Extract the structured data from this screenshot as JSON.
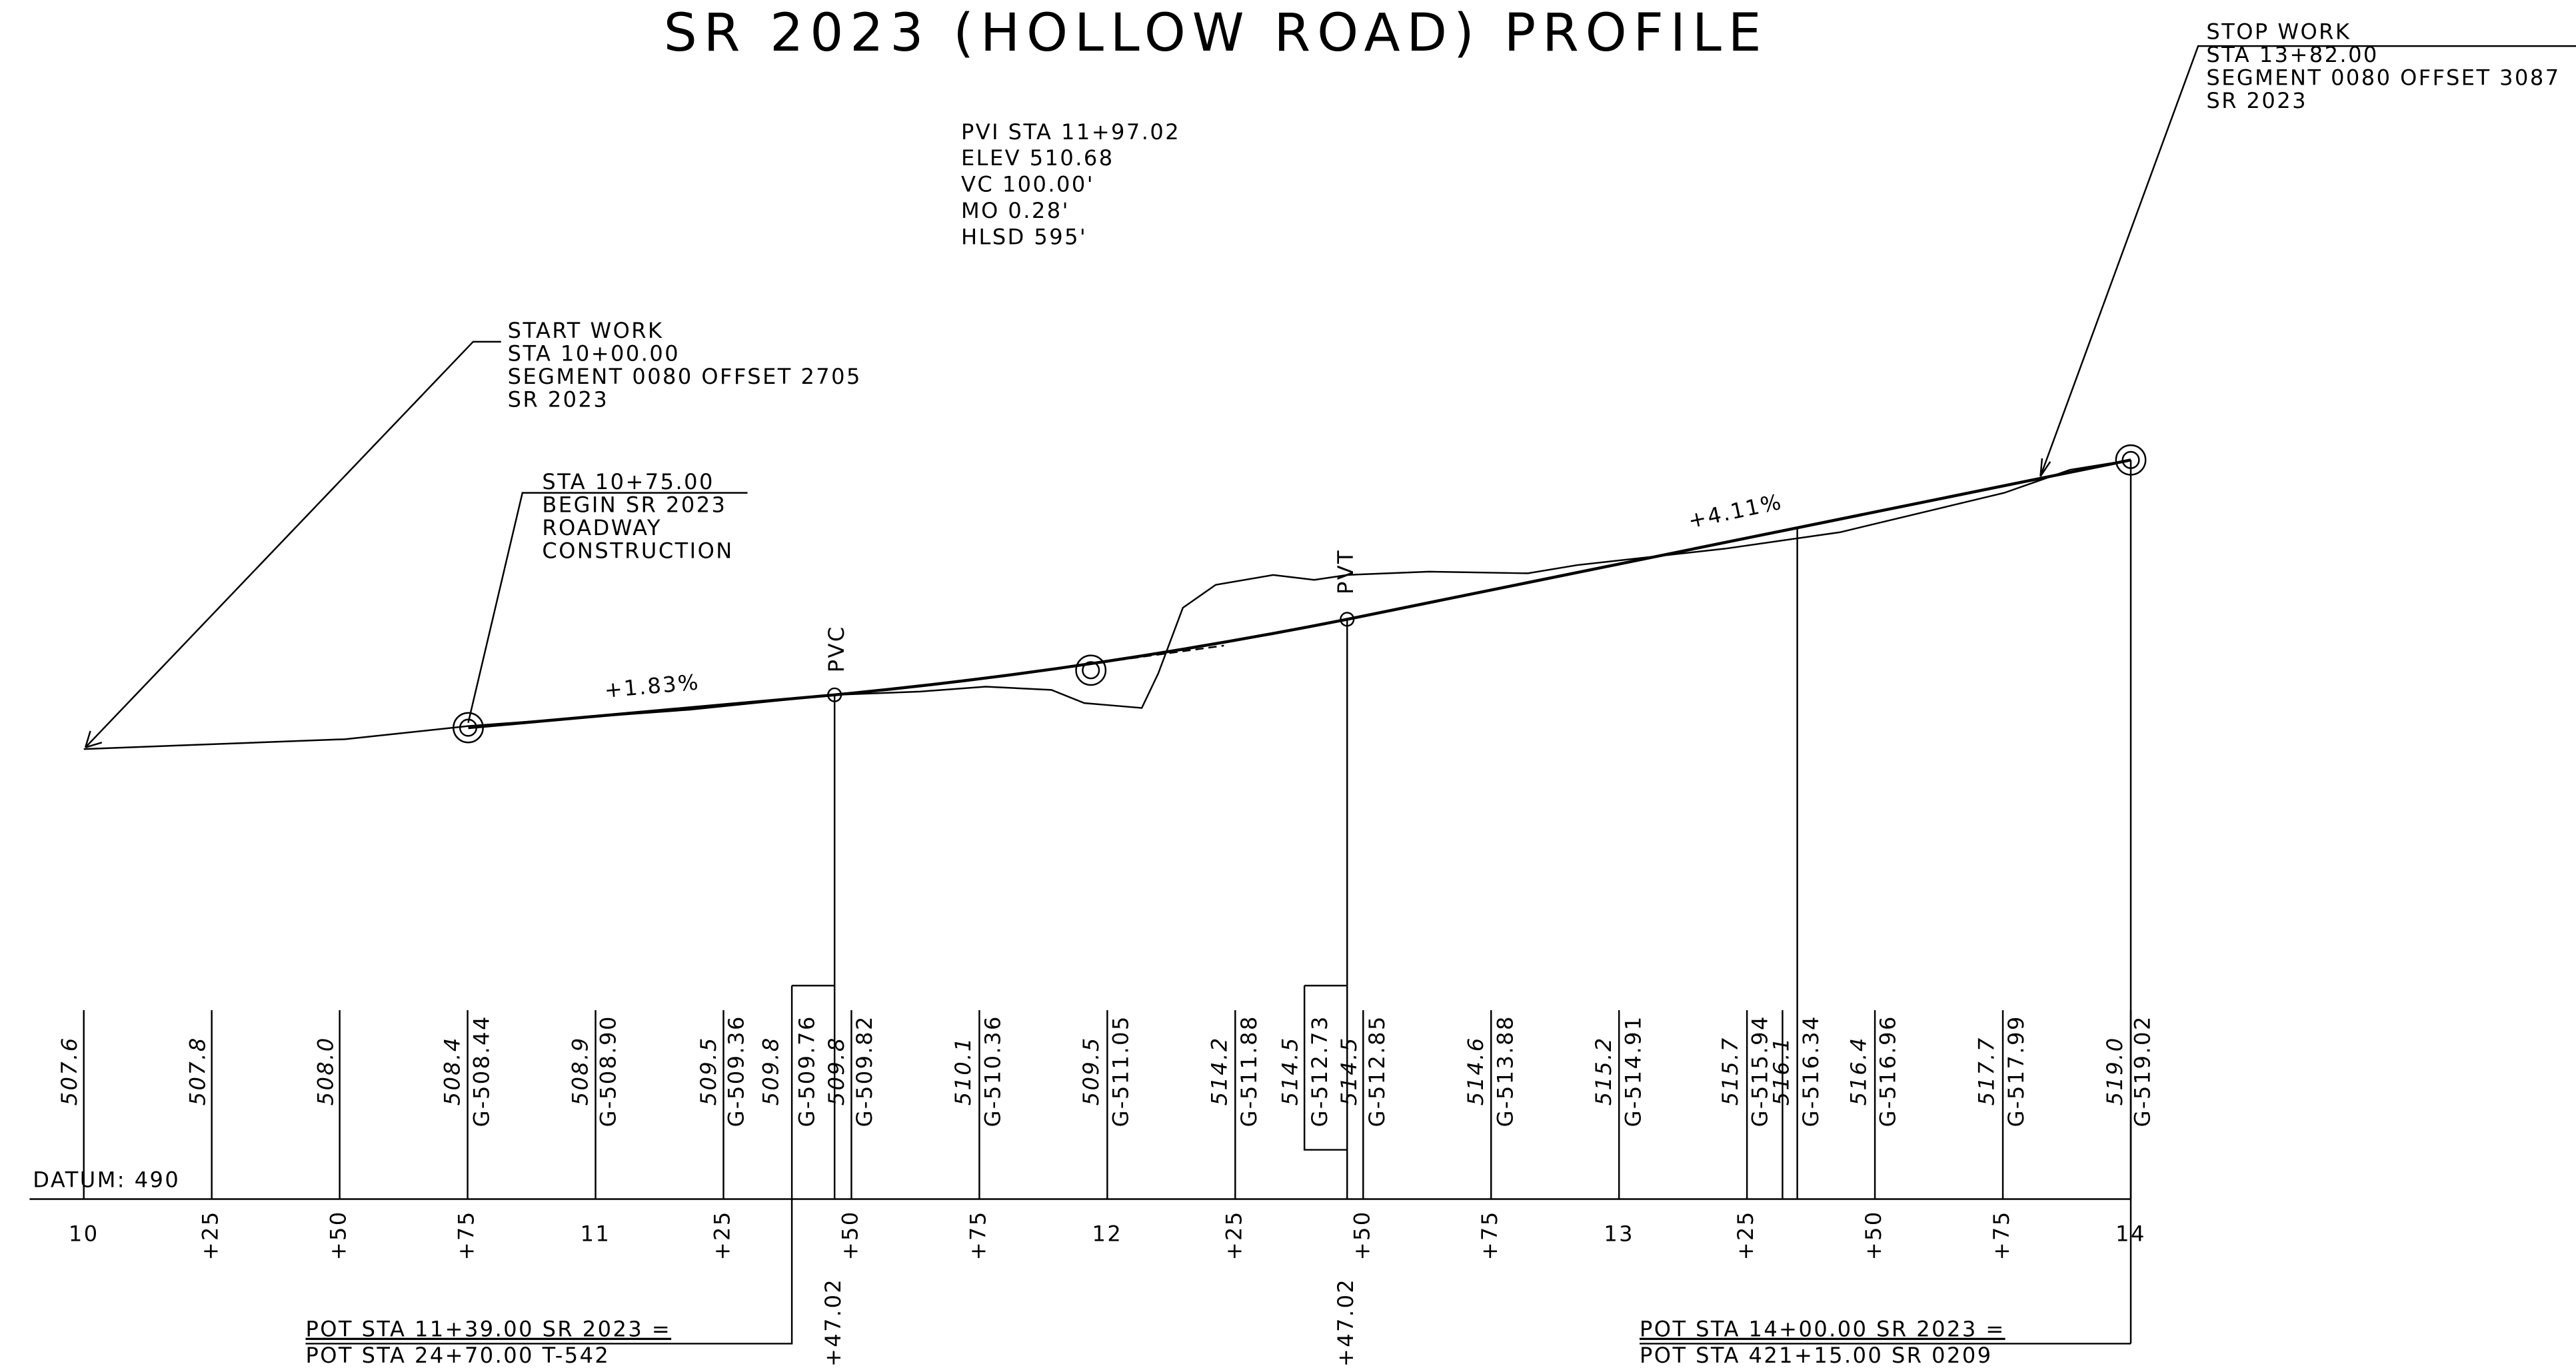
{
  "title": "SR 2023 (HOLLOW ROAD) PROFILE",
  "pvi_note": [
    "PVI STA 11+97.02",
    "ELEV 510.68",
    "VC 100.00'",
    "MO 0.28'",
    "HLSD 595'"
  ],
  "start_work": [
    "START WORK",
    "STA 10+00.00",
    "SEGMENT 0080 OFFSET 2705",
    "SR 2023"
  ],
  "stop_work": [
    "STOP WORK",
    "STA 13+82.00",
    "SEGMENT 0080 OFFSET 3087",
    "SR 2023"
  ],
  "begin_construction": [
    "STA 10+75.00",
    "BEGIN SR 2023",
    "ROADWAY",
    "CONSTRUCTION"
  ],
  "grades": [
    "+1.83%",
    "+4.11%"
  ],
  "pvc": "PVC",
  "pvt": "PVT",
  "datum": "DATUM: 490",
  "elevation_labels": [
    "507.6",
    "507.8",
    "508.0",
    "508.4",
    "G-508.44",
    "508.9",
    "G-508.90",
    "509.5",
    "G-509.36",
    "509.8",
    "G-509.76",
    "509.8",
    "G-509.82",
    "510.1",
    "G-510.36",
    "509.5",
    "G-511.05",
    "514.2",
    "G-511.88",
    "514.5",
    "G-512.73",
    "514.5",
    "G-512.85",
    "514.6",
    "G-513.88",
    "515.2",
    "G-514.91",
    "515.7",
    "G-515.94",
    "516.1",
    "G-516.34",
    "516.4",
    "G-516.96",
    "517.7",
    "G-517.99",
    "519.0",
    "G-519.02"
  ],
  "stations": [
    "10",
    "+25",
    "+50",
    "+75",
    "11",
    "+25",
    "+50",
    "+75",
    "12",
    "+25",
    "+50",
    "+75",
    "13",
    "+25",
    "+50",
    "+75",
    "14"
  ],
  "pvc_station": "+47.02",
  "pvt_station": "+47.02",
  "pot_notes": [
    [
      "POT STA 11+39.00 SR 2023 =",
      "POT STA 24+70.00 T-542"
    ],
    [
      "POT STA 14+00.00 SR 2023 =",
      "POT STA 421+15.00 SR 0209"
    ]
  ]
}
